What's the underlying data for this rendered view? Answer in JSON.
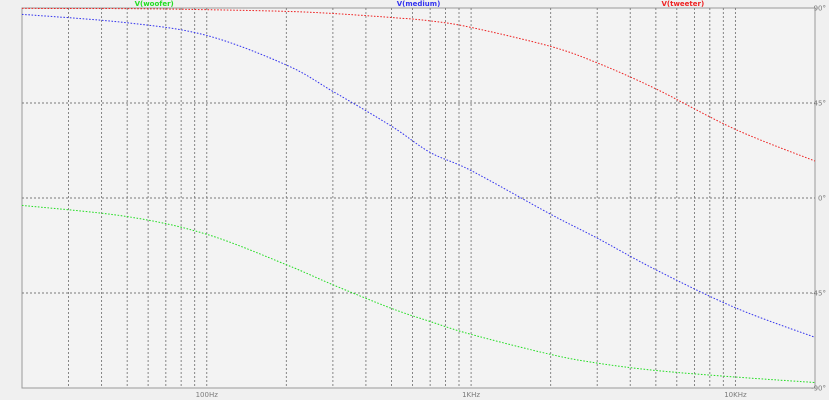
{
  "chart_data": {
    "type": "line",
    "x_scale": "log",
    "x_unit": "Hz",
    "xlim": [
      20,
      20000
    ],
    "ylim": [
      -90,
      90
    ],
    "grid": true,
    "legend_placement": "top",
    "x_ticks": [
      {
        "value": 100,
        "label": "100Hz"
      },
      {
        "value": 1000,
        "label": "1KHz"
      },
      {
        "value": 10000,
        "label": "10KHz"
      }
    ],
    "y_ticks": [
      {
        "value": 90,
        "label": "90°"
      },
      {
        "value": 45,
        "label": "45°"
      },
      {
        "value": 0,
        "label": "0°"
      },
      {
        "value": -45,
        "label": "-45°"
      },
      {
        "value": -90,
        "label": "-90°"
      }
    ],
    "series": [
      {
        "name": "V(woofer)",
        "color": "#22dd22",
        "x": [
          20,
          50,
          100,
          200,
          300,
          500,
          700,
          1000,
          2000,
          3000,
          5000,
          10000,
          20000
        ],
        "y": [
          -3.5,
          -8.8,
          -17.2,
          -31.6,
          -41.1,
          -52.3,
          -58.5,
          -64.6,
          -74.1,
          -78.2,
          -81.7,
          -84.8,
          -87.4
        ]
      },
      {
        "name": "V(medium)",
        "color": "#3333ee",
        "x": [
          20,
          50,
          100,
          200,
          300,
          500,
          700,
          1000,
          2000,
          3000,
          5000,
          10000,
          20000
        ],
        "y": [
          87,
          83,
          77,
          63,
          50.5,
          34,
          21.6,
          13,
          -7.7,
          -19,
          -34,
          -52,
          -66
        ]
      },
      {
        "name": "V(tweeter)",
        "color": "#ee2222",
        "x": [
          20,
          50,
          100,
          200,
          300,
          500,
          700,
          1000,
          2000,
          3000,
          5000,
          10000,
          20000
        ],
        "y": [
          89.8,
          89.7,
          89.2,
          88.4,
          87.4,
          85.5,
          83.9,
          80.8,
          71.8,
          64,
          51.7,
          32.5,
          17.5
        ]
      }
    ]
  }
}
